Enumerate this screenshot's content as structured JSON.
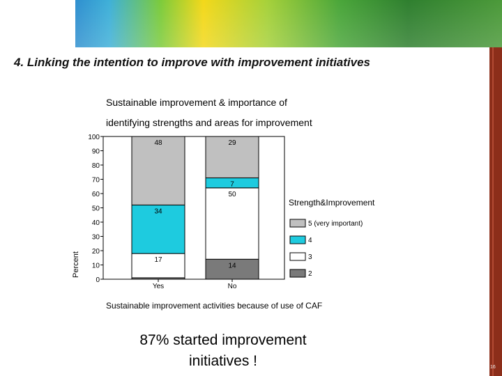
{
  "heading": "4. Linking the intention to improve with improvement initiatives",
  "callout_line1": "87% started improvement",
  "callout_line2": "initiatives !",
  "slide_number": "16",
  "colors": {
    "level5": "#c0c0c0",
    "level4": "#1ecbdf",
    "level3": "#ffffff",
    "level2": "#7a7a7a",
    "accent_bar": "#8c2e1a"
  },
  "chart_data": {
    "type": "bar",
    "stacked": true,
    "percent": true,
    "title_line1": "Sustainable improvement & importance of",
    "title_line2": "identifying strengths and areas for improvement",
    "xlabel": "Sustainable improvement activities because of use of CAF",
    "ylabel": "Percent",
    "categories": [
      "Yes",
      "No"
    ],
    "ylim": [
      0,
      100
    ],
    "yticks": [
      0,
      10,
      20,
      30,
      40,
      50,
      60,
      70,
      80,
      90,
      100
    ],
    "legend_title": "Strength&Improvement",
    "legend_position": "right",
    "series": [
      {
        "name": "2",
        "values": [
          1,
          14
        ],
        "labels": [
          "",
          "14"
        ],
        "color": "#7a7a7a"
      },
      {
        "name": "3",
        "values": [
          17,
          50
        ],
        "labels": [
          "17",
          "50"
        ],
        "color": "#ffffff"
      },
      {
        "name": "4",
        "values": [
          34,
          7
        ],
        "labels": [
          "34",
          "7"
        ],
        "color": "#1ecbdf"
      },
      {
        "name": "5 (very important)",
        "values": [
          48,
          29
        ],
        "labels": [
          "48",
          "29"
        ],
        "color": "#c0c0c0"
      }
    ],
    "legend_order": [
      "5 (very important)",
      "4",
      "3",
      "2"
    ]
  }
}
